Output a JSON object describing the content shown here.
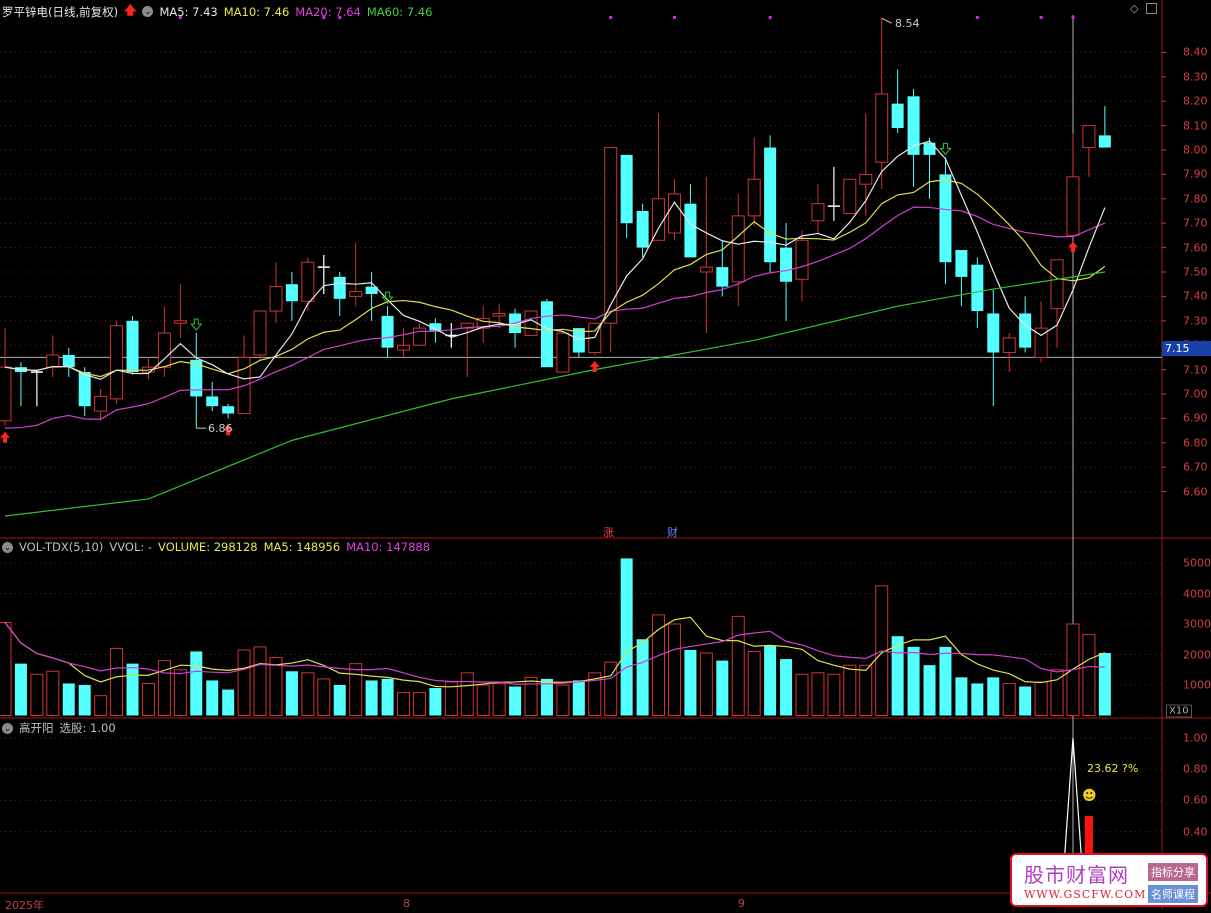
{
  "header": {
    "title": "罗平锌电(日线,前复权)",
    "ma5": "MA5: 7.43",
    "ma10": "MA10: 7.46",
    "ma20": "MA20: 7.64",
    "ma60": "MA60: 7.46"
  },
  "volume_header": {
    "name": "VOL-TDX(5,10)",
    "vvol": "VVOL: -",
    "volume": "VOLUME: 298128",
    "ma5": "MA5: 148956",
    "ma10": "MA10: 147888"
  },
  "indicator_header": {
    "name": "高开阳",
    "value": "选股: 1.00",
    "annotation": "23.62 ?%"
  },
  "price_axis": [
    "8.40",
    "8.30",
    "8.20",
    "8.10",
    "8.00",
    "7.90",
    "7.80",
    "7.70",
    "7.60",
    "7.50",
    "7.40",
    "7.30",
    "7.20",
    "7.10",
    "7.00",
    "6.90",
    "6.80",
    "6.70",
    "6.60"
  ],
  "current_price": "7.15",
  "volume_axis": [
    "50000",
    "40000",
    "30000",
    "20000",
    "10000"
  ],
  "volume_unit": "X10",
  "indicator_axis": [
    "1.00",
    "0.80",
    "0.60",
    "0.40"
  ],
  "time_axis": [
    {
      "label": "2025年"
    },
    {
      "label": "8"
    },
    {
      "label": "9"
    }
  ],
  "annotations": {
    "high_label": "8.54",
    "low_label": "6.86",
    "mark_zhang": "涨",
    "mark_cai": "财"
  },
  "logo": {
    "name": "股市财富网",
    "url_text": "WWW.GSCFW.COM",
    "tag1": "指标分享",
    "tag2": "名师课程"
  },
  "colors": {
    "up": "#d03434",
    "down": "#54ffff",
    "ma5": "#e8e8e8",
    "ma10": "#e0e050",
    "ma20": "#d040d0",
    "ma60": "#30c030",
    "grid": "#7a1010",
    "axis": "#d04040"
  },
  "chart_data": {
    "type": "candlestick",
    "ylim": [
      6.5,
      8.6
    ],
    "ohlc": [
      [
        6.89,
        7.27,
        6.87,
        7.11
      ],
      [
        7.11,
        7.13,
        6.95,
        7.09
      ],
      [
        7.09,
        7.1,
        6.95,
        7.09
      ],
      [
        7.11,
        7.24,
        7.07,
        7.16
      ],
      [
        7.16,
        7.19,
        7.07,
        7.11
      ],
      [
        7.09,
        7.11,
        6.91,
        6.95
      ],
      [
        6.93,
        7.02,
        6.89,
        6.99
      ],
      [
        6.98,
        7.3,
        6.96,
        7.28
      ],
      [
        7.3,
        7.32,
        7.08,
        7.09
      ],
      [
        7.09,
        7.15,
        7.06,
        7.11
      ],
      [
        7.11,
        7.36,
        7.07,
        7.25
      ],
      [
        7.29,
        7.45,
        7.23,
        7.3
      ],
      [
        7.14,
        7.25,
        6.86,
        6.99
      ],
      [
        6.99,
        7.05,
        6.93,
        6.95
      ],
      [
        6.95,
        6.96,
        6.9,
        6.92
      ],
      [
        6.92,
        7.24,
        6.92,
        7.15
      ],
      [
        7.16,
        7.34,
        7.14,
        7.34
      ],
      [
        7.34,
        7.54,
        7.29,
        7.44
      ],
      [
        7.45,
        7.5,
        7.3,
        7.38
      ],
      [
        7.38,
        7.56,
        7.34,
        7.54
      ],
      [
        7.52,
        7.57,
        7.41,
        7.52
      ],
      [
        7.48,
        7.5,
        7.32,
        7.39
      ],
      [
        7.4,
        7.62,
        7.36,
        7.42
      ],
      [
        7.44,
        7.5,
        7.3,
        7.41
      ],
      [
        7.32,
        7.36,
        7.15,
        7.19
      ],
      [
        7.18,
        7.27,
        7.15,
        7.2
      ],
      [
        7.2,
        7.29,
        7.2,
        7.27
      ],
      [
        7.29,
        7.31,
        7.21,
        7.26
      ],
      [
        7.24,
        7.29,
        7.19,
        7.24
      ],
      [
        7.27,
        7.29,
        7.07,
        7.29
      ],
      [
        7.27,
        7.36,
        7.21,
        7.31
      ],
      [
        7.32,
        7.37,
        7.27,
        7.33
      ],
      [
        7.33,
        7.35,
        7.19,
        7.25
      ],
      [
        7.24,
        7.34,
        7.24,
        7.34
      ],
      [
        7.38,
        7.39,
        7.11,
        7.11
      ],
      [
        7.09,
        7.26,
        7.09,
        7.25
      ],
      [
        7.27,
        7.27,
        7.15,
        7.17
      ],
      [
        7.17,
        7.29,
        7.16,
        7.29
      ],
      [
        7.29,
        8.01,
        7.17,
        8.01
      ],
      [
        7.98,
        7.98,
        7.64,
        7.7
      ],
      [
        7.75,
        7.78,
        7.56,
        7.6
      ],
      [
        7.63,
        8.15,
        7.63,
        7.8
      ],
      [
        7.66,
        7.88,
        7.63,
        7.82
      ],
      [
        7.78,
        7.86,
        7.56,
        7.56
      ],
      [
        7.5,
        7.89,
        7.25,
        7.52
      ],
      [
        7.52,
        7.63,
        7.4,
        7.44
      ],
      [
        7.46,
        7.82,
        7.36,
        7.73
      ],
      [
        7.73,
        8.05,
        7.69,
        7.88
      ],
      [
        8.01,
        8.06,
        7.5,
        7.54
      ],
      [
        7.6,
        7.7,
        7.3,
        7.46
      ],
      [
        7.47,
        7.67,
        7.38,
        7.63
      ],
      [
        7.71,
        7.86,
        7.66,
        7.78
      ],
      [
        7.77,
        7.93,
        7.71,
        7.77
      ],
      [
        7.74,
        7.88,
        7.74,
        7.88
      ],
      [
        7.86,
        8.15,
        7.73,
        7.9
      ],
      [
        7.95,
        8.54,
        7.84,
        8.23
      ],
      [
        8.19,
        8.33,
        8.07,
        8.09
      ],
      [
        8.22,
        8.25,
        7.85,
        7.98
      ],
      [
        8.03,
        8.05,
        7.8,
        7.98
      ],
      [
        7.9,
        7.97,
        7.45,
        7.54
      ],
      [
        7.59,
        7.59,
        7.36,
        7.48
      ],
      [
        7.53,
        7.56,
        7.27,
        7.34
      ],
      [
        7.33,
        7.43,
        6.95,
        7.17
      ],
      [
        7.17,
        7.25,
        7.09,
        7.23
      ],
      [
        7.33,
        7.4,
        7.17,
        7.19
      ],
      [
        7.15,
        7.38,
        7.13,
        7.27
      ],
      [
        7.35,
        7.55,
        7.19,
        7.55
      ],
      [
        7.65,
        8.07,
        7.65,
        7.89
      ],
      [
        8.01,
        8.1,
        7.89,
        8.1
      ],
      [
        8.06,
        8.18,
        8.01,
        8.01
      ]
    ],
    "ma60_samples": [
      [
        0,
        6.5
      ],
      [
        9,
        6.57
      ],
      [
        18,
        6.81
      ],
      [
        28,
        6.98
      ],
      [
        37,
        7.1
      ],
      [
        47,
        7.22
      ],
      [
        56,
        7.36
      ],
      [
        62,
        7.43
      ],
      [
        69,
        7.5
      ]
    ],
    "volume": [
      30500,
      17000,
      13500,
      14500,
      10500,
      10000,
      6500,
      22000,
      17000,
      10500,
      18000,
      15000,
      21000,
      11500,
      8500,
      21500,
      22500,
      19000,
      14500,
      14000,
      12000,
      10000,
      17000,
      11500,
      12000,
      7500,
      7500,
      9000,
      11000,
      14000,
      10000,
      10500,
      9500,
      12500,
      12000,
      10000,
      11500,
      14000,
      17500,
      51500,
      25000,
      33000,
      30000,
      21500,
      20500,
      18000,
      32500,
      21000,
      23000,
      18500,
      13500,
      14000,
      13500,
      16500,
      16500,
      42500,
      26000,
      22500,
      16500,
      22500,
      12500,
      10500,
      12500,
      10500,
      9500,
      11000,
      15000,
      30000,
      26500,
      20500
    ],
    "volume_ylim": [
      0,
      55000
    ],
    "buy_signals": [
      0,
      14,
      37,
      67
    ],
    "sell_signals": [
      12,
      24,
      59
    ],
    "top_markers": [
      11,
      20,
      21,
      38,
      42,
      48,
      61,
      65,
      67
    ],
    "indicator": {
      "signal_index": 67,
      "signal_value": 1.0,
      "bar_index": 68,
      "bar_value": 0.5,
      "ylim": [
        0,
        1.1
      ]
    },
    "crosshair_index": 67
  }
}
